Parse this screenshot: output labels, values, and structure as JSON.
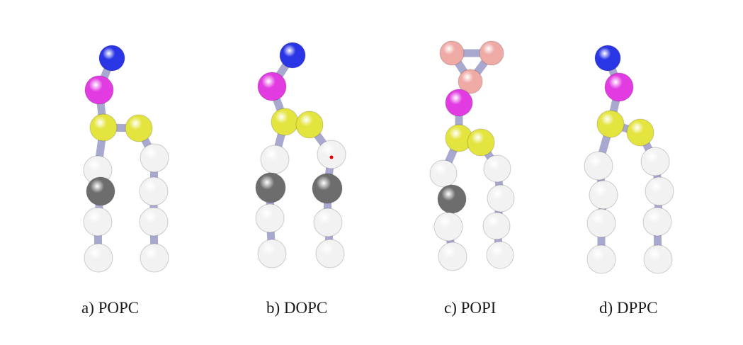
{
  "colors": {
    "bond": "#a9a9cf",
    "choline": "#2a35e6",
    "phosphate": "#e23be2",
    "glycerol": "#e4e43e",
    "tail": "#f2f2f2",
    "double_bond": "#6d6d6d",
    "inositol": "#efaaa5",
    "marker": "#e00000"
  },
  "molecules": [
    {
      "id": "popc",
      "caption": "a) POPC"
    },
    {
      "id": "dopc",
      "caption": "b) DOPC"
    },
    {
      "id": "popi",
      "caption": "c) POPI"
    },
    {
      "id": "dppc",
      "caption": "d) DPPC"
    }
  ]
}
